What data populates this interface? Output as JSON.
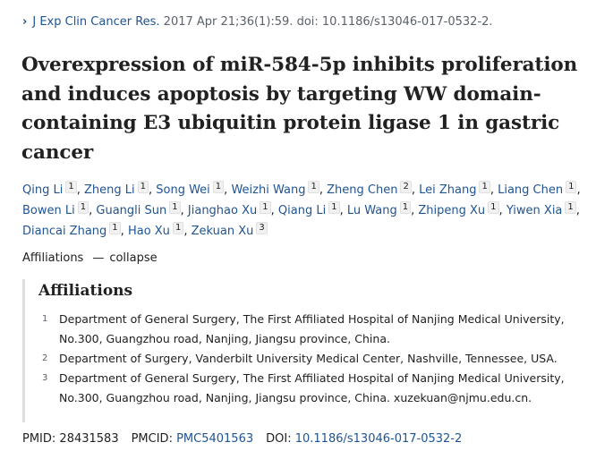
{
  "citation": {
    "chevron": "›",
    "journal": "J Exp Clin Cancer Res.",
    "rest": " 2017 Apr 21;36(1):59. doi: 10.1186/s13046-017-0532-2."
  },
  "title": "Overexpression of miR-584-5p inhibits proliferation and induces apoptosis by targeting WW domain-containing E3 ubiquitin protein ligase 1 in gastric cancer",
  "authors": [
    {
      "name": "Qing Li",
      "aff": "1",
      "sep": ","
    },
    {
      "name": "Zheng Li",
      "aff": "1",
      "sep": ","
    },
    {
      "name": "Song Wei",
      "aff": "1",
      "sep": ","
    },
    {
      "name": "Weizhi Wang",
      "aff": "1",
      "sep": ","
    },
    {
      "name": "Zheng Chen",
      "aff": "2",
      "sep": ","
    },
    {
      "name": "Lei Zhang",
      "aff": "1",
      "sep": ","
    },
    {
      "name": "Liang Chen",
      "aff": "1",
      "sep": ","
    },
    {
      "name": "Bowen Li",
      "aff": "1",
      "sep": ","
    },
    {
      "name": "Guangli Sun",
      "aff": "1",
      "sep": ","
    },
    {
      "name": "Jianghao Xu",
      "aff": "1",
      "sep": ","
    },
    {
      "name": "Qiang Li",
      "aff": "1",
      "sep": ","
    },
    {
      "name": "Lu Wang",
      "aff": "1",
      "sep": ","
    },
    {
      "name": "Zhipeng Xu",
      "aff": "1",
      "sep": ","
    },
    {
      "name": "Yiwen Xia",
      "aff": "1",
      "sep": ","
    },
    {
      "name": "Diancai Zhang",
      "aff": "1",
      "sep": ","
    },
    {
      "name": "Hao Xu",
      "aff": "1",
      "sep": ","
    },
    {
      "name": "Zekuan Xu",
      "aff": "3",
      "sep": ""
    }
  ],
  "affiliations_toggle": {
    "label": "Affiliations",
    "dash": "—",
    "action": "collapse"
  },
  "affiliations": {
    "heading": "Affiliations",
    "items": [
      {
        "num": "1",
        "text": "Department of General Surgery, The First Affiliated Hospital of Nanjing Medical University, No.300, Guangzhou road, Nanjing, Jiangsu province, China."
      },
      {
        "num": "2",
        "text": "Department of Surgery, Vanderbilt University Medical Center, Nashville, Tennessee, USA."
      },
      {
        "num": "3",
        "text": "Department of General Surgery, The First Affiliated Hospital of Nanjing Medical University, No.300, Guangzhou road, Nanjing, Jiangsu province, China. xuzekuan@njmu.edu.cn."
      }
    ]
  },
  "identifiers": {
    "pmid_label": "PMID:",
    "pmid": "28431583",
    "pmcid_label": "PMCID:",
    "pmcid": "PMC5401563",
    "doi_label": "DOI:",
    "doi": "10.1186/s13046-017-0532-2"
  },
  "colors": {
    "link": "#205493",
    "text": "#212121",
    "muted": "#5b616b"
  }
}
